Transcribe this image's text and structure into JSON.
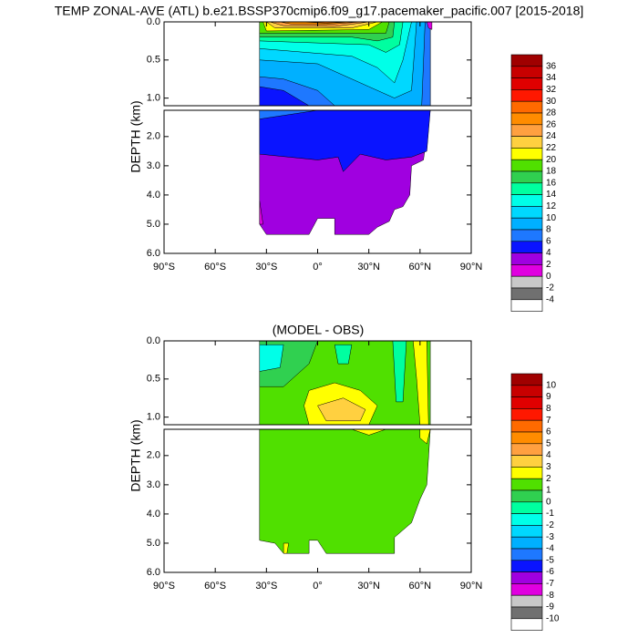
{
  "chart_data": [
    {
      "type": "contour",
      "title": "TEMP ZONAL-AVE (ATL) b.e21.BSSP370cmip6.f09_g17.pacemaker_pacific.007 [2015-2018]",
      "y_label": "DEPTH (km)",
      "xlim": [
        -90,
        90
      ],
      "xticks": [
        {
          "value": -90,
          "label": "90°S"
        },
        {
          "value": -60,
          "label": "60°S"
        },
        {
          "value": -30,
          "label": "30°S"
        },
        {
          "value": 0,
          "label": "0°"
        },
        {
          "value": 30,
          "label": "30°N"
        },
        {
          "value": 60,
          "label": "60°N"
        },
        {
          "value": 90,
          "label": "90°N"
        }
      ],
      "panels": [
        {
          "ylim": [
            0,
            1.1
          ],
          "yticks": [
            {
              "value": 0,
              "label": "0.0"
            },
            {
              "value": 0.5,
              "label": "0.5"
            },
            {
              "value": 1,
              "label": "1.0"
            }
          ]
        },
        {
          "ylim": [
            1.1,
            6
          ],
          "yticks": [
            {
              "value": 2,
              "label": "2.0"
            },
            {
              "value": 3,
              "label": "3.0"
            },
            {
              "value": 4,
              "label": "4.0"
            },
            {
              "value": 5,
              "label": "5.0"
            },
            {
              "value": 6,
              "label": "6.0"
            }
          ]
        }
      ],
      "levels": [
        36,
        34,
        32,
        30,
        28,
        26,
        24,
        22,
        20,
        18,
        16,
        14,
        12,
        10,
        8,
        6,
        4,
        2,
        0,
        -2,
        -4
      ],
      "colors": [
        "#a00000",
        "#c80000",
        "#e00000",
        "#ff1800",
        "#ff6a00",
        "#ff8c00",
        "#ffa040",
        "#ffd040",
        "#ffff00",
        "#50e000",
        "#30d050",
        "#00ffa0",
        "#00ffe8",
        "#00d8ff",
        "#00b0ff",
        "#1e78ff",
        "#0a14ff",
        "#a000e0",
        "#e000e0",
        "#c8c8c8",
        "#707070",
        "#ffffff"
      ]
    },
    {
      "type": "contour",
      "title": "(MODEL - OBS)",
      "y_label": "DEPTH (km)",
      "xlim": [
        -90,
        90
      ],
      "xticks": [
        {
          "value": -90,
          "label": "90°S"
        },
        {
          "value": -60,
          "label": "60°S"
        },
        {
          "value": -30,
          "label": "30°S"
        },
        {
          "value": 0,
          "label": "0°"
        },
        {
          "value": 30,
          "label": "30°N"
        },
        {
          "value": 60,
          "label": "60°N"
        },
        {
          "value": 90,
          "label": "90°N"
        }
      ],
      "panels": [
        {
          "ylim": [
            0,
            1.1
          ],
          "yticks": [
            {
              "value": 0,
              "label": "0.0"
            },
            {
              "value": 0.5,
              "label": "0.5"
            },
            {
              "value": 1,
              "label": "1.0"
            }
          ]
        },
        {
          "ylim": [
            1.1,
            6
          ],
          "yticks": [
            {
              "value": 2,
              "label": "2.0"
            },
            {
              "value": 3,
              "label": "3.0"
            },
            {
              "value": 4,
              "label": "4.0"
            },
            {
              "value": 5,
              "label": "5.0"
            },
            {
              "value": 6,
              "label": "6.0"
            }
          ]
        }
      ],
      "levels": [
        10,
        9,
        8,
        7,
        6,
        5,
        4,
        3,
        2,
        1,
        0,
        -1,
        -2,
        -3,
        -4,
        -5,
        -6,
        -7,
        -8,
        -9,
        -10
      ],
      "colors": [
        "#a00000",
        "#c80000",
        "#e00000",
        "#ff1800",
        "#ff6a00",
        "#ff8c00",
        "#ffa040",
        "#ffd040",
        "#ffff00",
        "#50e000",
        "#30d050",
        "#00ffa0",
        "#00ffe8",
        "#00d8ff",
        "#00b0ff",
        "#1e78ff",
        "#0a14ff",
        "#a000e0",
        "#e000e0",
        "#c8c8c8",
        "#707070",
        "#ffffff"
      ]
    }
  ]
}
